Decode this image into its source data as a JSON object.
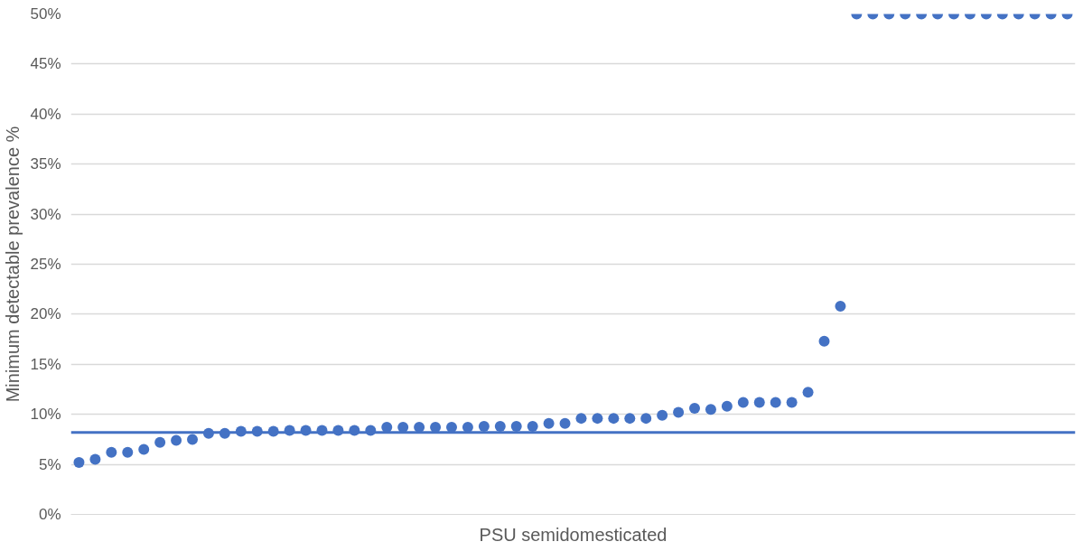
{
  "chart_data": {
    "type": "scatter",
    "xlabel": "PSU semidomesticated",
    "ylabel": "Minimum detectable prevalence %",
    "categories": [
      null,
      null,
      null,
      null,
      null,
      null,
      null,
      null,
      null,
      null,
      null,
      null,
      null,
      null,
      null,
      null,
      null,
      null,
      null,
      null,
      null,
      null,
      null,
      null,
      null,
      null,
      null,
      null,
      null,
      null,
      null,
      null,
      null,
      null,
      null,
      null,
      null,
      null,
      null,
      null,
      null,
      null,
      null,
      null,
      null,
      null,
      null,
      null,
      null,
      null,
      null,
      null,
      null,
      null,
      null,
      null,
      null,
      null,
      null,
      null,
      null,
      null
    ],
    "series": [
      {
        "color": "#4472c4",
        "values": [
          5.2,
          5.5,
          6.2,
          6.2,
          6.5,
          7.2,
          7.4,
          7.5,
          8.1,
          8.1,
          8.3,
          8.3,
          8.3,
          8.4,
          8.4,
          8.4,
          8.4,
          8.4,
          8.4,
          8.7,
          8.7,
          8.7,
          8.7,
          8.7,
          8.7,
          8.8,
          8.8,
          8.8,
          8.8,
          9.1,
          9.1,
          9.6,
          9.6,
          9.6,
          9.6,
          9.6,
          9.9,
          10.2,
          10.6,
          10.5,
          10.8,
          11.2,
          11.2,
          11.2,
          11.2,
          12.2,
          17.3,
          20.8,
          50,
          50,
          50,
          50,
          50,
          50,
          50,
          50,
          50,
          50,
          50,
          50,
          50,
          50
        ]
      }
    ],
    "ref_lines": [
      {
        "axis": "y",
        "value": 8.2,
        "color": "#4472c4",
        "line_style": "solid"
      }
    ],
    "ylim": [
      0,
      50
    ],
    "yticks": [
      {
        "value": 0,
        "label": "0%"
      },
      {
        "value": 5,
        "label": "5%"
      },
      {
        "value": 10,
        "label": "10%"
      },
      {
        "value": 15,
        "label": "15%"
      },
      {
        "value": 20,
        "label": "20%"
      },
      {
        "value": 25,
        "label": "25%"
      },
      {
        "value": 30,
        "label": "30%"
      },
      {
        "value": 35,
        "label": "35%"
      },
      {
        "value": 40,
        "label": "40%"
      },
      {
        "value": 45,
        "label": "45%"
      },
      {
        "value": 50,
        "label": "50%"
      }
    ],
    "grid": "y",
    "marker": "circle",
    "tick_labels": "y"
  }
}
